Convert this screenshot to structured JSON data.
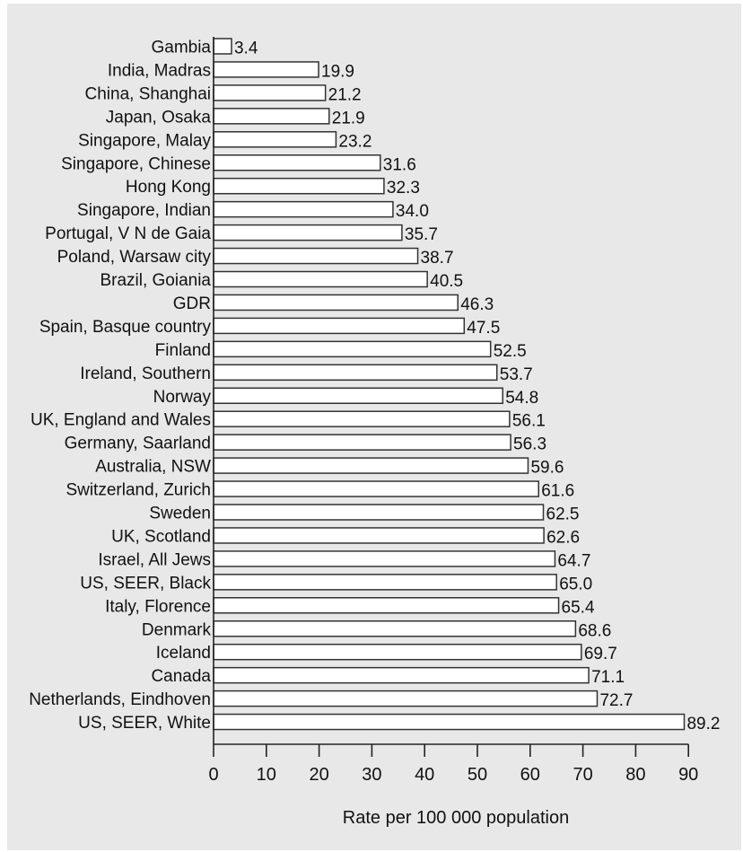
{
  "chart_data": {
    "type": "bar",
    "orientation": "horizontal",
    "categories": [
      "Gambia",
      "India, Madras",
      "China, Shanghai",
      "Japan, Osaka",
      "Singapore, Malay",
      "Singapore, Chinese",
      "Hong Kong",
      "Singapore, Indian",
      "Portugal, V N de Gaia",
      "Poland, Warsaw city",
      "Brazil, Goiania",
      "GDR",
      "Spain, Basque country",
      "Finland",
      "Ireland, Southern",
      "Norway",
      "UK, England and Wales",
      "Germany, Saarland",
      "Australia, NSW",
      "Switzerland, Zurich",
      "Sweden",
      "UK, Scotland",
      "Israel, All Jews",
      "US, SEER, Black",
      "Italy, Florence",
      "Denmark",
      "Iceland",
      "Canada",
      "Netherlands, Eindhoven",
      "US, SEER, White"
    ],
    "values": [
      3.4,
      19.9,
      21.2,
      21.9,
      23.2,
      31.6,
      32.3,
      34.0,
      35.7,
      38.7,
      40.5,
      46.3,
      47.5,
      52.5,
      53.7,
      54.8,
      56.1,
      56.3,
      59.6,
      61.6,
      62.5,
      62.6,
      64.7,
      65.0,
      65.4,
      68.6,
      69.7,
      71.1,
      72.7,
      89.2
    ],
    "value_labels": [
      "3.4",
      "19.9",
      "21.2",
      "21.9",
      "23.2",
      "31.6",
      "32.3",
      "34.0",
      "35.7",
      "38.7",
      "40.5",
      "46.3",
      "47.5",
      "52.5",
      "53.7",
      "54.8",
      "56.1",
      "56.3",
      "59.6",
      "61.6",
      "62.5",
      "62.6",
      "64.7",
      "65.0",
      "65.4",
      "68.6",
      "69.7",
      "71.1",
      "72.7",
      "89.2"
    ],
    "xlabel": "Rate per 100 000 population",
    "xlim": [
      0,
      90
    ],
    "xticks": [
      "0",
      "10",
      "20",
      "30",
      "40",
      "50",
      "60",
      "70",
      "80",
      "90"
    ],
    "grid": false,
    "colors": {
      "background": "#e8e8e8",
      "bar_fill": "#ffffff",
      "bar_stroke": "#333333",
      "axis": "#222222"
    }
  }
}
